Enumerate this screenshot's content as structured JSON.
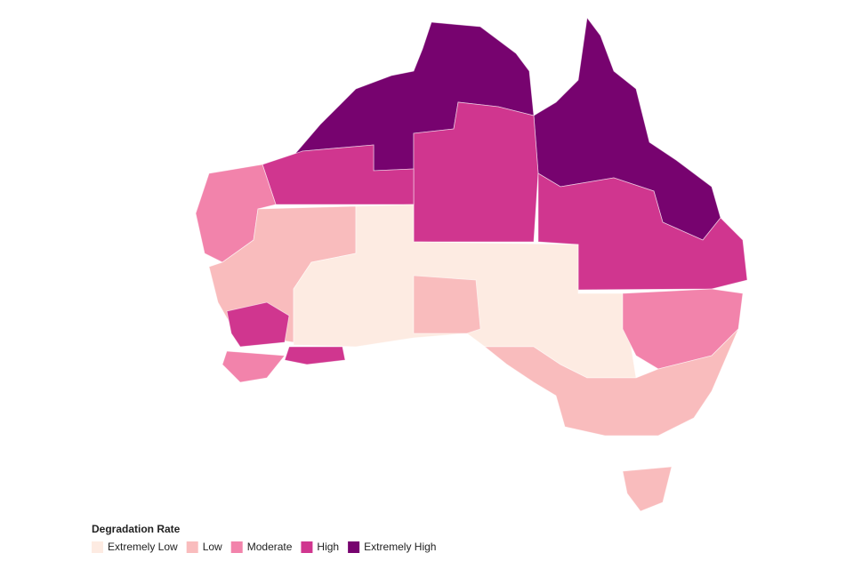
{
  "legend": {
    "title": "Degradation Rate",
    "items": [
      {
        "label": "Extremely Low",
        "color": "#fdebe2"
      },
      {
        "label": "Low",
        "color": "#f9bcbd"
      },
      {
        "label": "Moderate",
        "color": "#f283ab"
      },
      {
        "label": "High",
        "color": "#d0368f"
      },
      {
        "label": "Extremely High",
        "color": "#77036f"
      }
    ]
  }
}
